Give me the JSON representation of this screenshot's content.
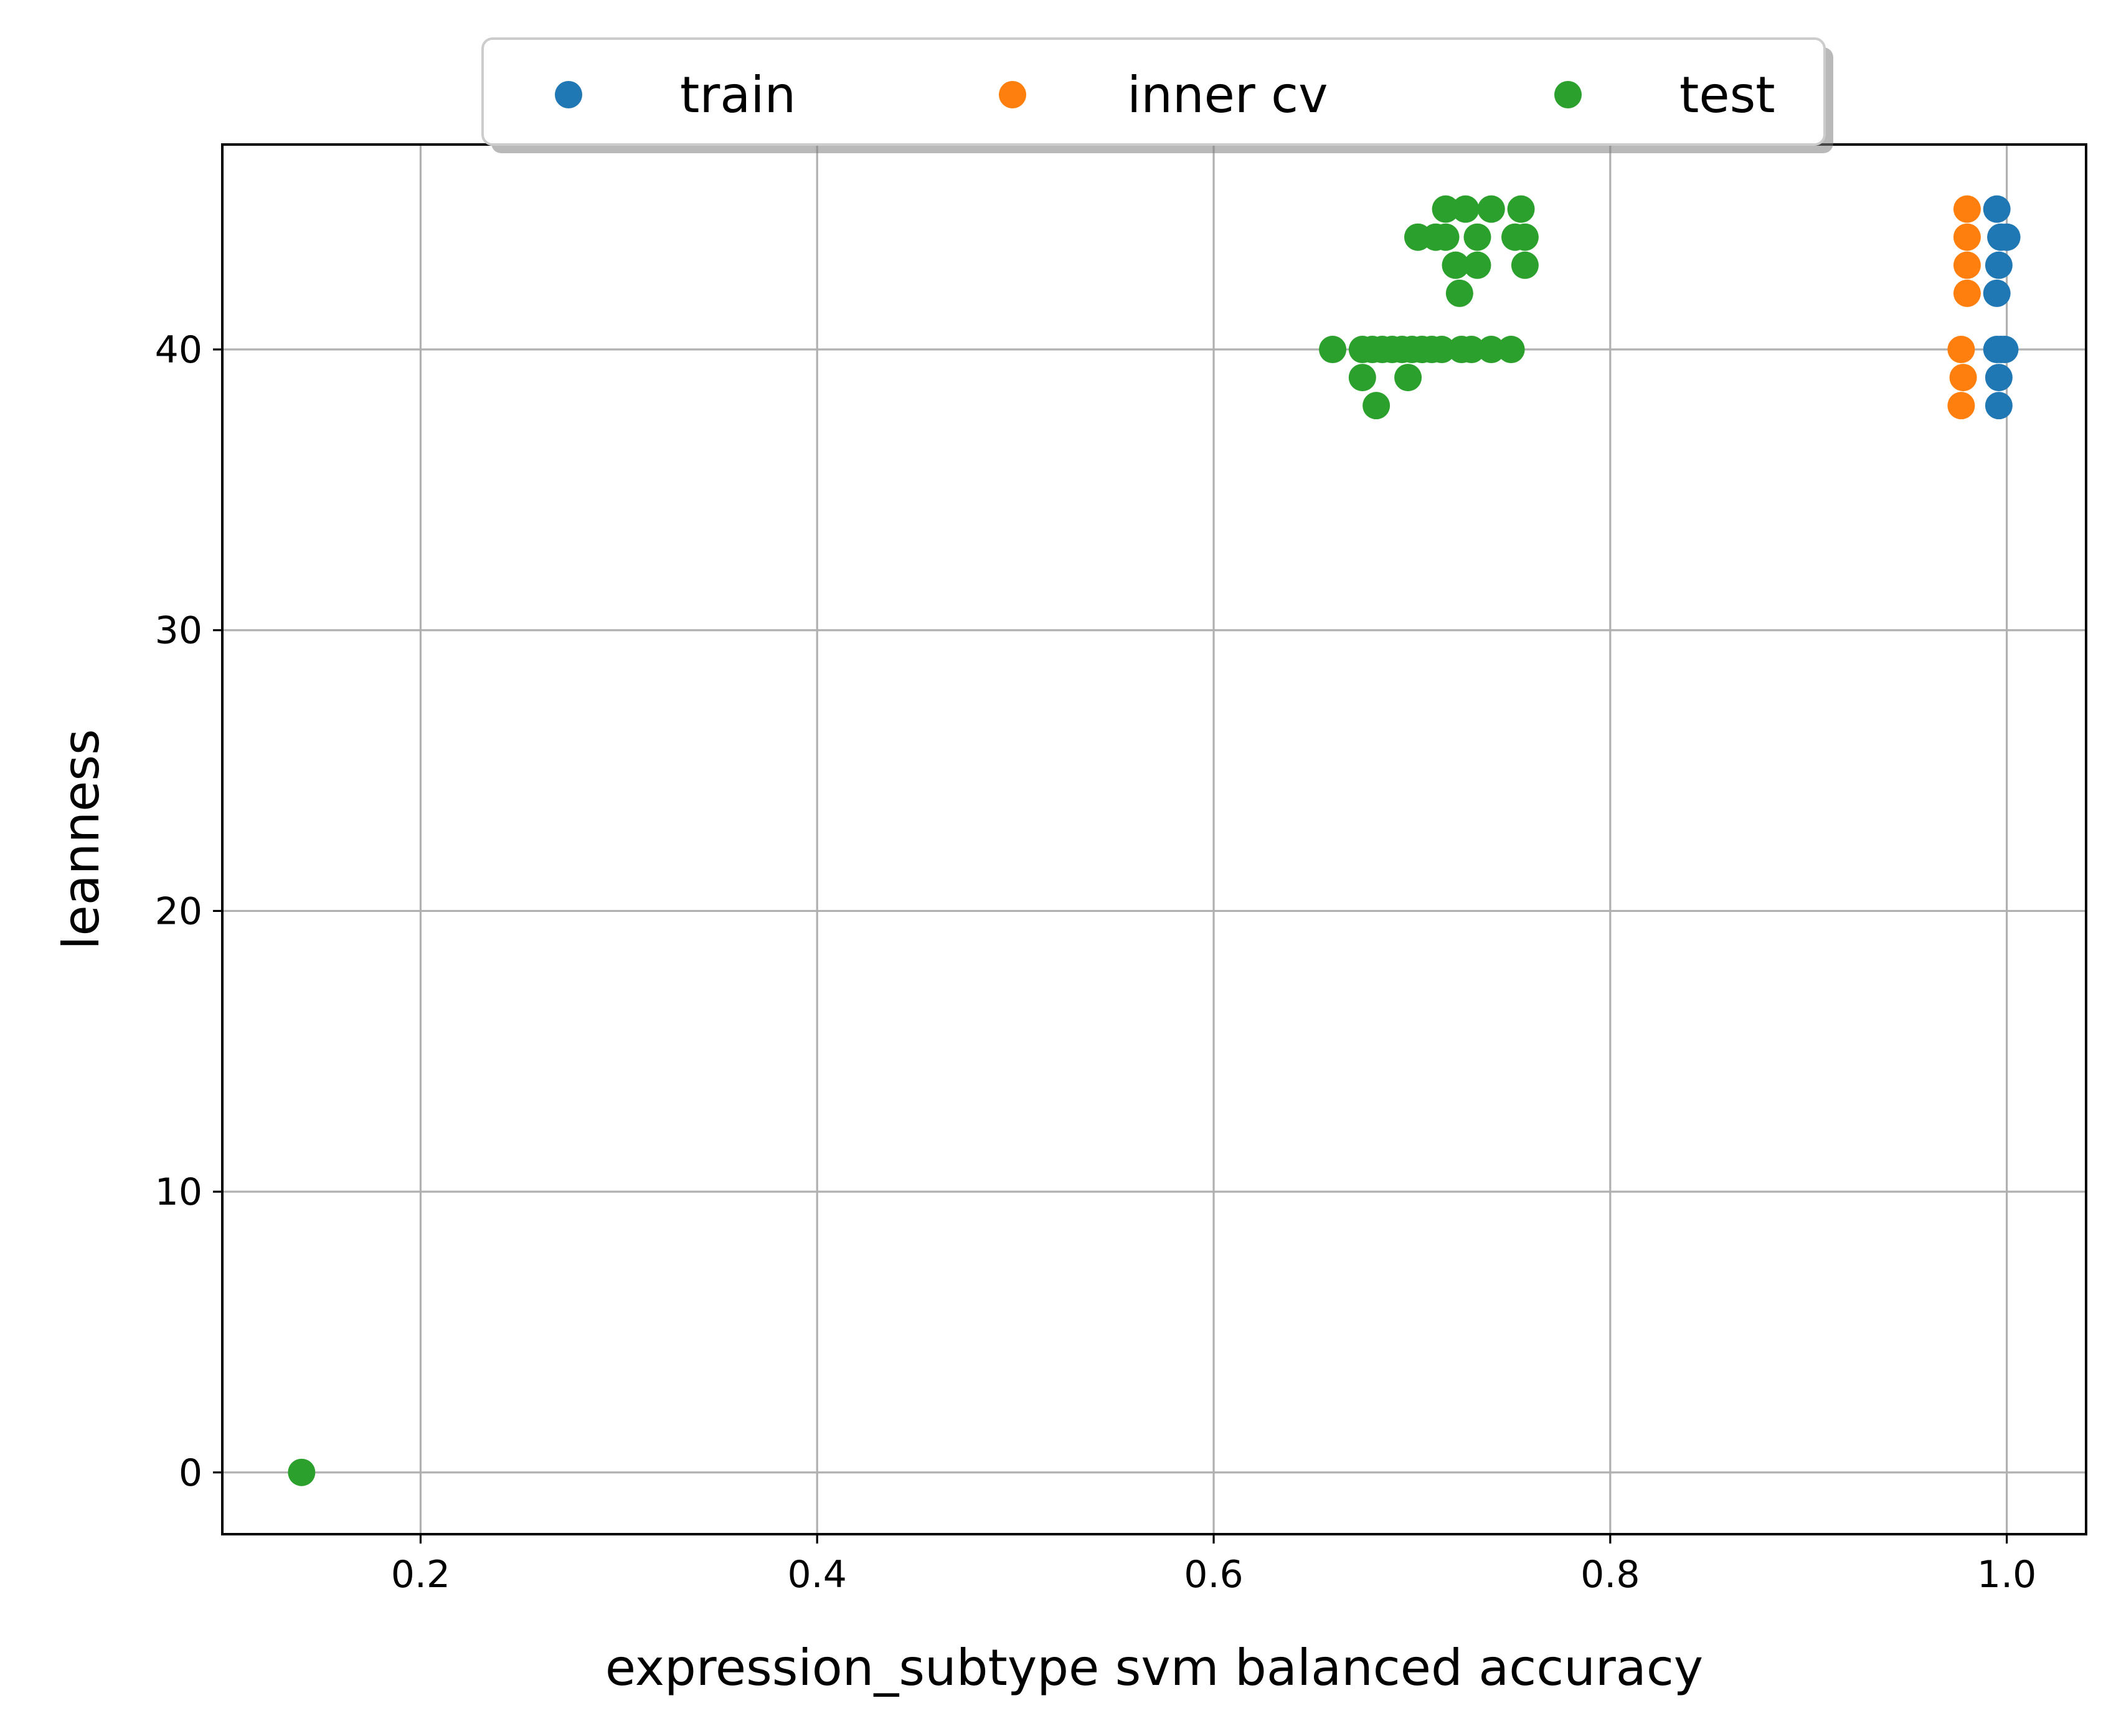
{
  "chart_data": {
    "type": "scatter",
    "xlabel": "expression_subtype svm balanced accuracy",
    "ylabel": "leanness",
    "xlim": [
      0.1,
      1.04
    ],
    "ylim": [
      -2.2,
      47.3
    ],
    "xticks": [
      0.2,
      0.4,
      0.6,
      0.8,
      1.0
    ],
    "xtick_labels": [
      "0.2",
      "0.4",
      "0.6",
      "0.8",
      "1.0"
    ],
    "yticks": [
      0,
      10,
      20,
      30,
      40
    ],
    "ytick_labels": [
      "0",
      "10",
      "20",
      "30",
      "40"
    ],
    "grid": true,
    "legend": {
      "placement": "top-center",
      "columns": 3,
      "shadow": true
    },
    "series": [
      {
        "name": "train",
        "color": "#1f77b4",
        "points": [
          [
            0.995,
            45
          ],
          [
            0.997,
            44
          ],
          [
            1.0,
            44
          ],
          [
            0.996,
            43
          ],
          [
            0.995,
            42
          ],
          [
            0.995,
            40
          ],
          [
            0.997,
            40
          ],
          [
            0.999,
            40
          ],
          [
            0.996,
            39
          ],
          [
            0.996,
            38
          ]
        ]
      },
      {
        "name": "inner cv",
        "color": "#ff7f0e",
        "points": [
          [
            0.98,
            45
          ],
          [
            0.98,
            44
          ],
          [
            0.98,
            43
          ],
          [
            0.98,
            42
          ],
          [
            0.977,
            40
          ],
          [
            0.978,
            39
          ],
          [
            0.977,
            38
          ]
        ]
      },
      {
        "name": "test",
        "color": "#2ca02c",
        "points": [
          [
            0.14,
            0
          ],
          [
            0.66,
            40
          ],
          [
            0.675,
            40
          ],
          [
            0.68,
            40
          ],
          [
            0.685,
            40
          ],
          [
            0.69,
            40
          ],
          [
            0.695,
            40
          ],
          [
            0.7,
            40
          ],
          [
            0.705,
            40
          ],
          [
            0.71,
            40
          ],
          [
            0.715,
            40
          ],
          [
            0.725,
            40
          ],
          [
            0.73,
            40
          ],
          [
            0.74,
            40
          ],
          [
            0.75,
            40
          ],
          [
            0.675,
            39
          ],
          [
            0.698,
            39
          ],
          [
            0.682,
            38
          ],
          [
            0.717,
            45
          ],
          [
            0.727,
            45
          ],
          [
            0.74,
            45
          ],
          [
            0.755,
            45
          ],
          [
            0.703,
            44
          ],
          [
            0.712,
            44
          ],
          [
            0.717,
            44
          ],
          [
            0.733,
            44
          ],
          [
            0.752,
            44
          ],
          [
            0.757,
            44
          ],
          [
            0.722,
            43
          ],
          [
            0.733,
            43
          ],
          [
            0.757,
            43
          ],
          [
            0.724,
            42
          ]
        ]
      }
    ]
  }
}
